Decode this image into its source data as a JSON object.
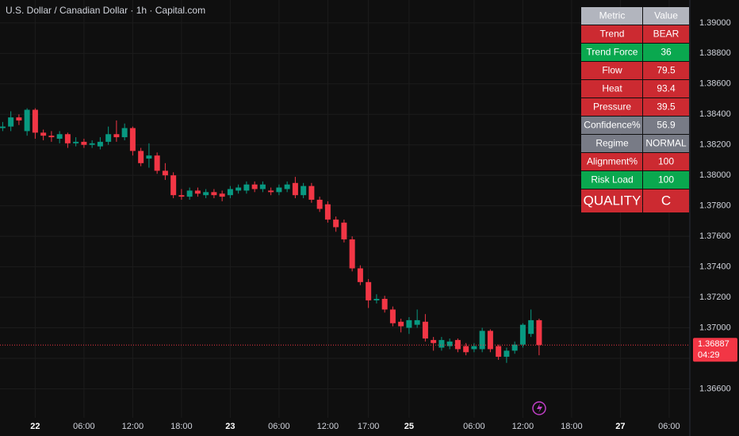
{
  "chart_data": {
    "type": "candlestick",
    "title": "U.S. Dollar / Canadian Dollar · 1h · Capital.com",
    "up_color": "#089981",
    "down_color": "#f23645",
    "categories": [
      null,
      null,
      null,
      null,
      "22",
      null,
      null,
      null,
      null,
      null,
      "06:00",
      null,
      null,
      null,
      null,
      null,
      "12:00",
      null,
      null,
      null,
      null,
      null,
      "18:00",
      null,
      null,
      null,
      null,
      null,
      "23",
      null,
      null,
      null,
      null,
      null,
      "06:00",
      null,
      null,
      null,
      null,
      null,
      "12:00",
      null,
      null,
      null,
      null,
      "17:00",
      null,
      null,
      null,
      null,
      "25",
      null,
      null,
      null,
      null,
      null,
      null,
      null,
      "06:00",
      null,
      null,
      null,
      null,
      null,
      "12:00",
      null,
      null,
      null,
      null,
      null,
      "18:00",
      null,
      null,
      null,
      null,
      null,
      "27",
      null,
      null,
      null,
      null,
      null,
      "06:00"
    ],
    "open": [
      1.3831,
      1.3832,
      1.3838,
      1.3829,
      1.3843,
      1.3828,
      1.3826,
      1.3824,
      1.3827,
      1.3821,
      1.3822,
      1.382,
      1.3819,
      1.3822,
      1.3827,
      1.3825,
      1.3831,
      1.3816,
      1.3811,
      1.3813,
      1.3803,
      1.38,
      1.3787,
      1.3786,
      1.379,
      1.3787,
      1.3789,
      1.3788,
      1.3787,
      1.379,
      1.379,
      1.3794,
      1.3791,
      1.379,
      1.3789,
      1.3791,
      1.3795,
      1.3787,
      1.3793,
      1.3784,
      1.3781,
      1.3771,
      1.3769,
      1.3758,
      1.3739,
      1.373,
      1.3718,
      1.3719,
      1.3712,
      1.3704,
      1.37,
      1.3702,
      1.3704,
      1.3692,
      1.3687,
      1.3688,
      1.3692,
      1.3688,
      1.3686,
      1.3686,
      1.3698,
      1.3688,
      1.3681,
      1.3685,
      1.3689,
      1.3696,
      1.3705,
      null,
      null,
      null,
      null,
      null,
      null,
      null,
      null,
      null,
      null,
      null,
      null,
      null,
      null,
      null,
      null
    ],
    "high": [
      1.3835,
      1.3842,
      1.384,
      1.3844,
      1.3844,
      1.383,
      1.3829,
      1.3829,
      1.3828,
      1.3825,
      1.3824,
      1.3823,
      1.3825,
      1.3832,
      1.3836,
      1.3834,
      1.3832,
      1.3818,
      1.3821,
      1.3815,
      1.3808,
      1.3802,
      1.3791,
      1.3792,
      1.3792,
      1.3791,
      1.3791,
      1.379,
      1.3793,
      1.3794,
      1.3796,
      1.3796,
      1.3796,
      1.3792,
      1.3794,
      1.3796,
      1.3799,
      1.3795,
      1.3795,
      1.3786,
      1.3783,
      1.3773,
      1.3771,
      1.376,
      1.3741,
      1.3732,
      1.3722,
      1.3721,
      1.3714,
      1.3706,
      1.3707,
      1.3712,
      1.3709,
      1.3694,
      1.3694,
      1.3693,
      1.3693,
      1.369,
      1.369,
      1.37,
      1.3699,
      1.3689,
      1.3687,
      1.3691,
      1.3703,
      1.3712,
      1.3706,
      null,
      null,
      null,
      null,
      null,
      null,
      null,
      null,
      null,
      null,
      null,
      null,
      null,
      null,
      null,
      null
    ],
    "low": [
      1.3829,
      1.3829,
      1.3833,
      1.3826,
      1.3824,
      1.3823,
      1.3822,
      1.3821,
      1.3818,
      1.3819,
      1.3818,
      1.3818,
      1.3817,
      1.382,
      1.3822,
      1.3823,
      1.3813,
      1.3806,
      1.3805,
      1.3801,
      1.3797,
      1.3785,
      1.3784,
      1.3784,
      1.3786,
      1.3785,
      1.3785,
      1.3783,
      1.3785,
      1.3788,
      1.3788,
      1.3789,
      1.3789,
      1.3787,
      1.3787,
      1.3789,
      1.3785,
      1.3785,
      1.3782,
      1.3776,
      1.3769,
      1.3763,
      1.3756,
      1.3737,
      1.3728,
      1.3713,
      1.3716,
      1.371,
      1.3701,
      1.3697,
      1.3696,
      1.37,
      1.3691,
      1.3685,
      1.3685,
      1.3686,
      1.3684,
      1.3682,
      1.3684,
      1.3684,
      1.3684,
      1.3679,
      1.3677,
      1.3683,
      1.3687,
      1.3694,
      1.3682,
      null,
      null,
      null,
      null,
      null,
      null,
      null,
      null,
      null,
      null,
      null,
      null,
      null,
      null,
      null,
      null
    ],
    "close": [
      1.3832,
      1.3838,
      1.3836,
      1.3843,
      1.3828,
      1.3826,
      1.3825,
      1.3827,
      1.3821,
      1.3822,
      1.382,
      1.3821,
      1.3822,
      1.3827,
      1.3825,
      1.3831,
      1.3816,
      1.3808,
      1.3813,
      1.3803,
      1.38,
      1.3787,
      1.3786,
      1.379,
      1.3788,
      1.3789,
      1.3787,
      1.3786,
      1.3791,
      1.3792,
      1.3794,
      1.3791,
      1.3794,
      1.3789,
      1.3792,
      1.3794,
      1.3787,
      1.3793,
      1.3784,
      1.3778,
      1.3771,
      1.3766,
      1.3758,
      1.3739,
      1.373,
      1.3718,
      1.3719,
      1.3712,
      1.3703,
      1.3701,
      1.3705,
      1.3705,
      1.3693,
      1.369,
      1.3692,
      1.3691,
      1.3686,
      1.3684,
      1.3688,
      1.3698,
      1.3686,
      1.3681,
      1.3685,
      1.3689,
      1.3702,
      1.3705,
      1.36887,
      null,
      null,
      null,
      null,
      null,
      null,
      null,
      null,
      null,
      null,
      null,
      null,
      null,
      null,
      null,
      null
    ],
    "ylim": [
      1.3641,
      1.3915
    ],
    "yticks": [
      {
        "value": 1.39,
        "label": "1.39000"
      },
      {
        "value": 1.388,
        "label": "1.38800"
      },
      {
        "value": 1.386,
        "label": "1.38600"
      },
      {
        "value": 1.384,
        "label": "1.38400"
      },
      {
        "value": 1.382,
        "label": "1.38200"
      },
      {
        "value": 1.38,
        "label": "1.38000"
      },
      {
        "value": 1.378,
        "label": "1.37800"
      },
      {
        "value": 1.376,
        "label": "1.37600"
      },
      {
        "value": 1.374,
        "label": "1.37400"
      },
      {
        "value": 1.372,
        "label": "1.37200"
      },
      {
        "value": 1.37,
        "label": "1.37000"
      },
      {
        "value": 1.368,
        "label": "1.36800"
      },
      {
        "value": 1.366,
        "label": "1.36600"
      }
    ],
    "grid": true,
    "last_price": {
      "value": 1.36887,
      "label": "1.36887"
    },
    "countdown": "04:29"
  },
  "table": {
    "header": [
      "Metric",
      "Value"
    ],
    "header_color": "#b2b5be",
    "rows": [
      [
        "Trend",
        "BEAR"
      ],
      [
        "Trend Force",
        "36"
      ],
      [
        "Flow",
        "79.5"
      ],
      [
        "Heat",
        "93.4"
      ],
      [
        "Pressure",
        "39.5"
      ],
      [
        "Confidence%",
        "56.9"
      ],
      [
        "Regime",
        "NORMAL"
      ],
      [
        "Alignment%",
        "100"
      ],
      [
        "Risk Load",
        "100"
      ],
      [
        "QUALITY",
        "C"
      ]
    ],
    "row_colors": [
      "#cc2a31",
      "#0aa84f",
      "#cc2a31",
      "#cc2a31",
      "#cc2a31",
      "#787b86",
      "#787b86",
      "#cc2a31",
      "#0aa84f",
      "#cc2a31"
    ]
  }
}
